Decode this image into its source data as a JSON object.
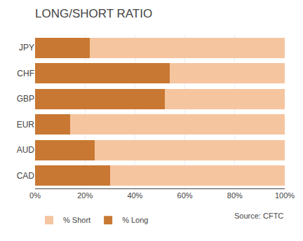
{
  "chart_data": {
    "type": "bar",
    "title": "LONG/SHORT RATIO",
    "orientation": "horizontal",
    "stacked": true,
    "categories": [
      "CAD",
      "AUD",
      "EUR",
      "GBP",
      "CHF",
      "JPY"
    ],
    "series": [
      {
        "name": "% Long",
        "color": "#c87832",
        "values": [
          30,
          24,
          14,
          52,
          54,
          22
        ]
      },
      {
        "name": "% Short",
        "color": "#f5c5a0",
        "values": [
          70,
          76,
          86,
          48,
          46,
          78
        ]
      }
    ],
    "xlim": [
      0,
      100
    ],
    "xticks": [
      {
        "value": 0,
        "label": "0%"
      },
      {
        "value": 20,
        "label": "20%"
      },
      {
        "value": 40,
        "label": "40%"
      },
      {
        "value": 60,
        "label": "60%"
      },
      {
        "value": 80,
        "label": "80%"
      },
      {
        "value": 100,
        "label": "100%"
      }
    ],
    "grid": true,
    "legend": "bottom left",
    "annotations": [
      "Source: CFTC"
    ]
  }
}
